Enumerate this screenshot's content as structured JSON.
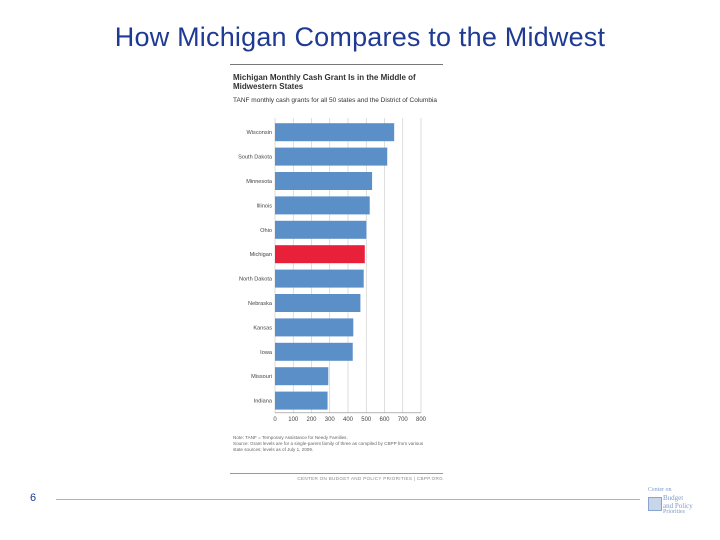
{
  "slide": {
    "title": "How Michigan Compares to the Midwest",
    "page_number": "6"
  },
  "logo": {
    "line1": "Center on",
    "line2": "Budget",
    "line3": "and Policy",
    "line4": "Priorities"
  },
  "colors": {
    "bar": "#5b8fc7",
    "highlight": "#e8203a",
    "title": "#1f3a93"
  },
  "chart_data": {
    "type": "bar",
    "orientation": "horizontal",
    "title": "Michigan Monthly Cash Grant Is in the Middle of Midwestern States",
    "subtitle": "TANF monthly cash grants for all 50 states and the District of Columbia",
    "categories": [
      "Wisconsin",
      "South Dakota",
      "Minnesota",
      "Illinois",
      "Ohio",
      "Michigan",
      "North Dakota",
      "Nebraska",
      "Kansas",
      "Iowa",
      "Missouri",
      "Indiana"
    ],
    "values": [
      653,
      615,
      532,
      519,
      501,
      492,
      486,
      468,
      429,
      426,
      292,
      288
    ],
    "highlight": "Michigan",
    "xlim": [
      0,
      800
    ],
    "xticks": [
      "0",
      "100",
      "200",
      "300",
      "400",
      "500",
      "600",
      "700",
      "800"
    ],
    "grid": true,
    "notes": [
      "Note: TANF = Temporary Assistance for Needy Families.",
      "Source: Grant levels are for a single-parent family of three as compiled by CBPP from various",
      "state sources; levels as of July 1, 2009."
    ],
    "credit": "CENTER ON BUDGET AND POLICY PRIORITIES | CBPP.ORG"
  }
}
